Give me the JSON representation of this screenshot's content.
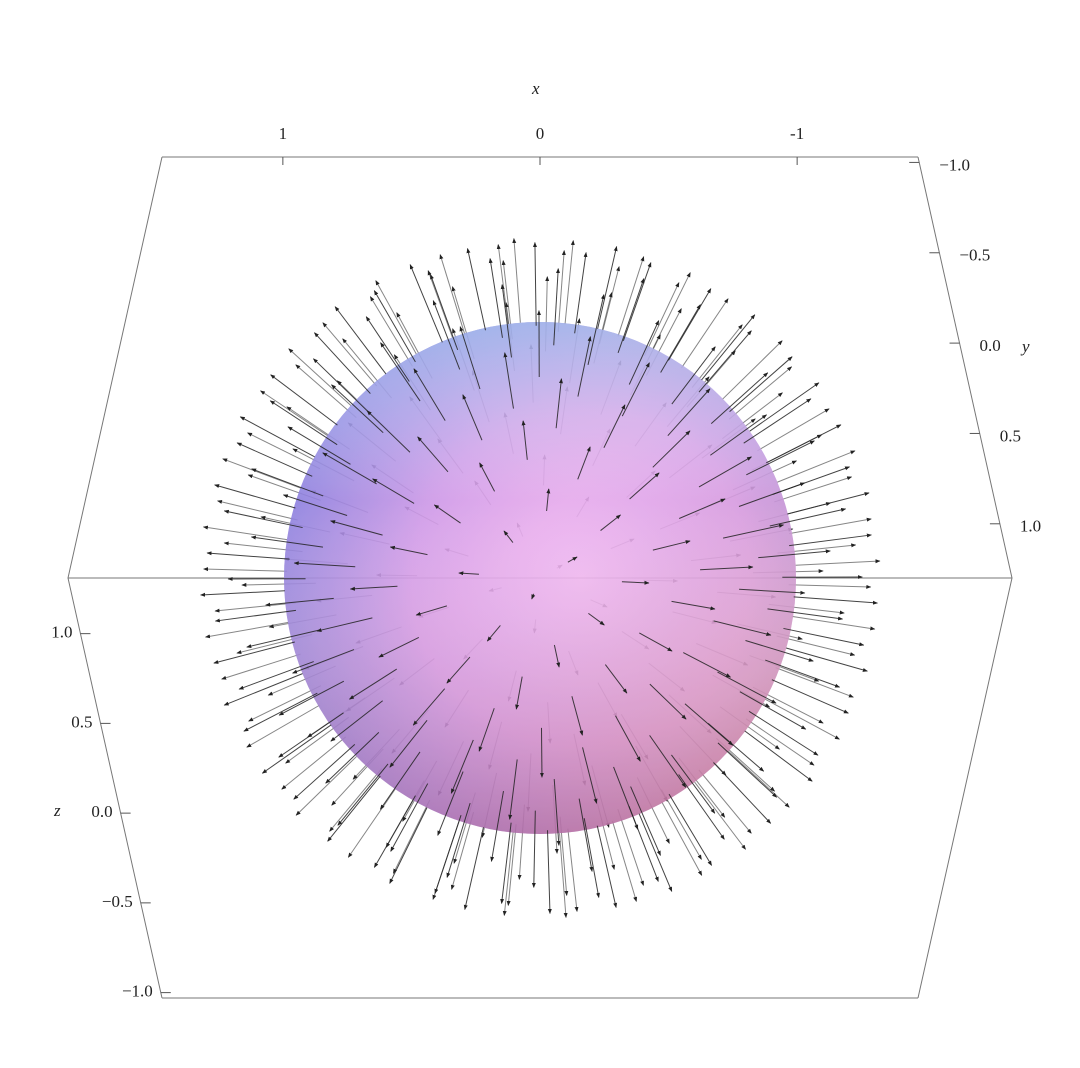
{
  "chart_data": {
    "type": "vector3d",
    "x_label": "x",
    "y_label": "y",
    "z_label": "z",
    "xlim": [
      1.47,
      -1.47
    ],
    "xticks": [
      1,
      0,
      -1
    ],
    "ylim": [
      -1.03,
      1.3
    ],
    "yticks": [
      {
        "value": -1.0,
        "label": "−1.0"
      },
      {
        "value": -0.5,
        "label": "−0.5"
      },
      {
        "value": 0.0,
        "label": "0.0"
      },
      {
        "value": 0.5,
        "label": "0.5"
      },
      {
        "value": 1.0,
        "label": "1.0"
      }
    ],
    "zlim": [
      -1.03,
      1.31
    ],
    "zticks": [
      {
        "value": 1.0,
        "label": "1.0"
      },
      {
        "value": 0.5,
        "label": "0.5"
      },
      {
        "value": 0.0,
        "label": "0.0"
      },
      {
        "value": -0.5,
        "label": "−0.5"
      },
      {
        "value": -1.0,
        "label": "−1.0"
      }
    ]
  }
}
